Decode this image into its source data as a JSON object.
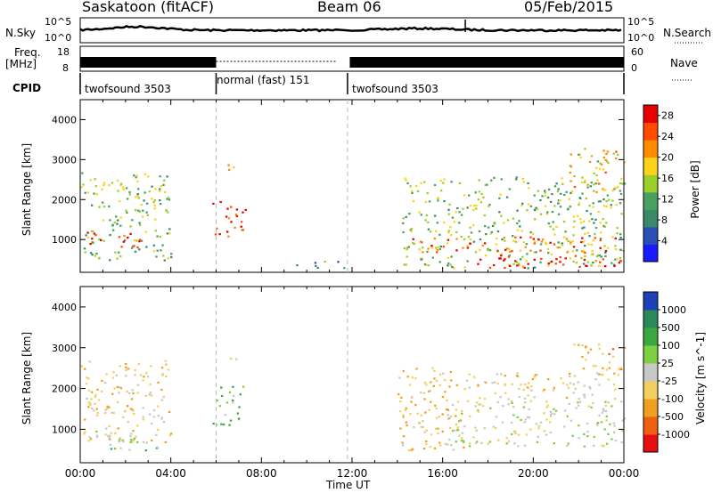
{
  "header": {
    "station": "Saskatoon (fitACF)",
    "beam": "Beam 06",
    "date": "05/Feb/2015"
  },
  "noise_panel": {
    "left_label": "N.Sky",
    "right_label": "N.Search",
    "left_ticks": [
      "10^5",
      "10^0"
    ],
    "right_ticks": [
      "10^5",
      "10^0"
    ]
  },
  "freq_panel": {
    "left_label_1": "Freq.",
    "left_label_2": "[MHz]",
    "right_label": "Nave",
    "left_ticks": [
      "18",
      "8"
    ],
    "right_ticks": [
      "60",
      "0"
    ]
  },
  "cpid": {
    "label": "CPID",
    "segments": [
      {
        "name": "twofsound 3503",
        "start_hour": 0,
        "end_hour": 6
      },
      {
        "name": "normal (fast) 151",
        "start_hour": 6,
        "end_hour": 11.8
      },
      {
        "name": "twofsound 3503",
        "start_hour": 11.8,
        "end_hour": 24
      }
    ]
  },
  "colors": {
    "power_scale": [
      "#1a1aff",
      "#2a4fb5",
      "#3a8a6a",
      "#4aa060",
      "#9bd02a",
      "#ffd21a",
      "#ff8c00",
      "#ff4a00",
      "#e60000"
    ],
    "velocity_scale": [
      "#1f3fb8",
      "#2a8a5a",
      "#3aa840",
      "#7ed040",
      "#c8c8c8",
      "#f2d060",
      "#f0a020",
      "#ee6010",
      "#e61010"
    ]
  },
  "chart_data": [
    {
      "type": "heatmap",
      "title": "",
      "xlabel": "Time UT",
      "ylabel": "Slant Range [km]",
      "xlim": [
        0,
        24
      ],
      "ylim": [
        180,
        4500
      ],
      "x_tick_labels": [
        "00:00",
        "04:00",
        "08:00",
        "12:00",
        "16:00",
        "20:00",
        "00:00"
      ],
      "y_tick_labels": [
        "1000",
        "2000",
        "3000",
        "4000"
      ],
      "colorbar": {
        "label": "Power [dB]",
        "tick_labels": [
          "4",
          "8",
          "12",
          "16",
          "20",
          "24",
          "28"
        ],
        "range": [
          0,
          30
        ]
      },
      "regions": [
        {
          "t0": 0.0,
          "t1": 4.0,
          "r0": 500,
          "r1": 2700,
          "value": 14
        },
        {
          "t0": 0.2,
          "t1": 2.6,
          "r0": 800,
          "r1": 1200,
          "value": 28
        },
        {
          "t0": 5.8,
          "t1": 7.3,
          "r0": 1100,
          "r1": 2000,
          "value": 26
        },
        {
          "t0": 6.5,
          "t1": 7.3,
          "r0": 2600,
          "r1": 2900,
          "value": 18
        },
        {
          "t0": 9.5,
          "t1": 11.8,
          "r0": 300,
          "r1": 500,
          "value": 10
        },
        {
          "t0": 14.2,
          "t1": 24.0,
          "r0": 300,
          "r1": 2600,
          "value": 14
        },
        {
          "t0": 14.2,
          "t1": 24.0,
          "r0": 700,
          "r1": 1100,
          "value": 24
        },
        {
          "t0": 17.5,
          "t1": 24.0,
          "r0": 300,
          "r1": 700,
          "value": 28
        },
        {
          "t0": 21.5,
          "t1": 24.0,
          "r0": 2200,
          "r1": 3300,
          "value": 18
        }
      ]
    },
    {
      "type": "heatmap",
      "title": "",
      "xlabel": "Time UT",
      "ylabel": "Slant Range [km]",
      "xlim": [
        0,
        24
      ],
      "ylim": [
        180,
        4500
      ],
      "x_tick_labels": [
        "00:00",
        "04:00",
        "08:00",
        "12:00",
        "16:00",
        "20:00",
        "00:00"
      ],
      "y_tick_labels": [
        "1000",
        "2000",
        "3000",
        "4000"
      ],
      "colorbar": {
        "label": "Velocity [m s^-1]",
        "tick_labels": [
          "1000",
          "500",
          "100",
          "25",
          "-25",
          "-100",
          "-500",
          "-1000"
        ],
        "range": [
          -1000,
          1000
        ]
      },
      "regions": [
        {
          "t0": 0.0,
          "t1": 4.0,
          "r0": 700,
          "r1": 2700,
          "value": -200
        },
        {
          "t0": 0.0,
          "t1": 2.5,
          "r0": 700,
          "r1": 1000,
          "value": 0
        },
        {
          "t0": 1.0,
          "t1": 4.0,
          "r0": 500,
          "r1": 800,
          "value": 150
        },
        {
          "t0": 5.8,
          "t1": 7.2,
          "r0": 1100,
          "r1": 2100,
          "value": 300
        },
        {
          "t0": 6.6,
          "t1": 7.3,
          "r0": 2600,
          "r1": 2800,
          "value": 0
        },
        {
          "t0": 14.0,
          "t1": 17.0,
          "r0": 500,
          "r1": 2600,
          "value": -300
        },
        {
          "t0": 16.0,
          "t1": 24.0,
          "r0": 600,
          "r1": 1700,
          "value": 0
        },
        {
          "t0": 17.0,
          "t1": 24.0,
          "r0": 1700,
          "r1": 2400,
          "value": -150
        },
        {
          "t0": 21.5,
          "t1": 24.0,
          "r0": 2300,
          "r1": 3100,
          "value": -400
        }
      ]
    }
  ]
}
